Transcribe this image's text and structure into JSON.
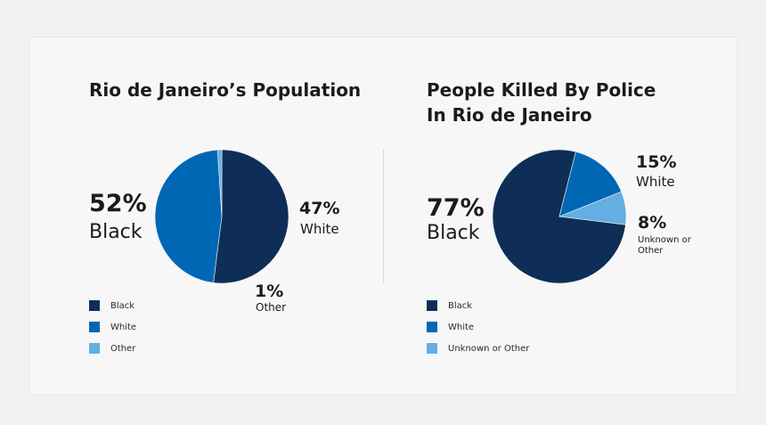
{
  "colors": {
    "black": "#0e2e57",
    "white": "#0067b4",
    "other": "#63aee3"
  },
  "chart_data": [
    {
      "type": "pie",
      "title_lines": [
        "Rio de Janeiro’s Population"
      ],
      "slices": [
        {
          "category": "Black",
          "value": 52,
          "pct_label": "52%",
          "slice_label": "Black",
          "color": "#0e2e57"
        },
        {
          "category": "White",
          "value": 47,
          "pct_label": "47%",
          "slice_label": "White",
          "color": "#0067b4"
        },
        {
          "category": "Other",
          "value": 1,
          "pct_label": "1%",
          "slice_label": "Other",
          "color": "#63aee3"
        }
      ],
      "legend": [
        "Black",
        "White",
        "Other"
      ],
      "start_angle_deg": 0,
      "legend_position": "bottom-left"
    },
    {
      "type": "pie",
      "title_lines": [
        "People Killed By Police",
        "In Rio de Janeiro"
      ],
      "slices": [
        {
          "category": "Black",
          "value": 77,
          "pct_label": "77%",
          "slice_label": "Black",
          "color": "#0e2e57"
        },
        {
          "category": "White",
          "value": 15,
          "pct_label": "15%",
          "slice_label": "White",
          "color": "#0067b4"
        },
        {
          "category": "Unknown or Other",
          "value": 8,
          "pct_label": "8%",
          "slice_label": "Unknown or Other",
          "color": "#63aee3"
        }
      ],
      "legend": [
        "Black",
        "White",
        "Unknown or Other"
      ],
      "start_angle_deg": 97,
      "legend_position": "bottom-left"
    }
  ]
}
